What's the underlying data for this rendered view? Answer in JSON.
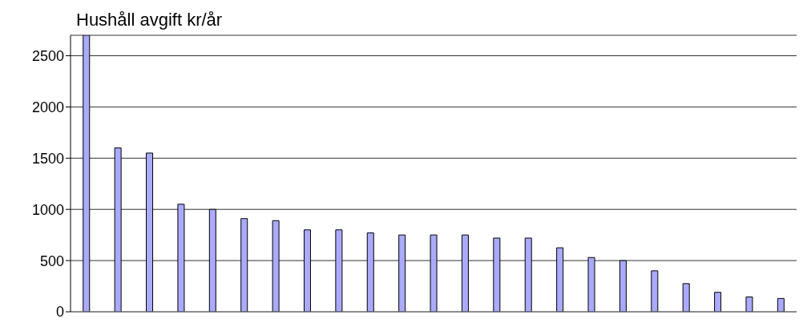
{
  "chart_data": {
    "type": "bar",
    "title": "Hushåll avgift kr/år",
    "categories": [
      null,
      null,
      null,
      null,
      null,
      null,
      null,
      null,
      null,
      null,
      null,
      null,
      null,
      null,
      null,
      null,
      null,
      null,
      null,
      null,
      null,
      null,
      null
    ],
    "values": [
      2700,
      1600,
      1550,
      1050,
      1000,
      910,
      890,
      800,
      800,
      770,
      750,
      750,
      750,
      720,
      720,
      625,
      530,
      500,
      400,
      275,
      190,
      145,
      130
    ],
    "color": "#aaaaff",
    "ylim": [
      0,
      2700
    ],
    "yticks": [
      0,
      500,
      1000,
      1500,
      2000,
      2500
    ],
    "grid": "y",
    "tick_labels": "y"
  }
}
